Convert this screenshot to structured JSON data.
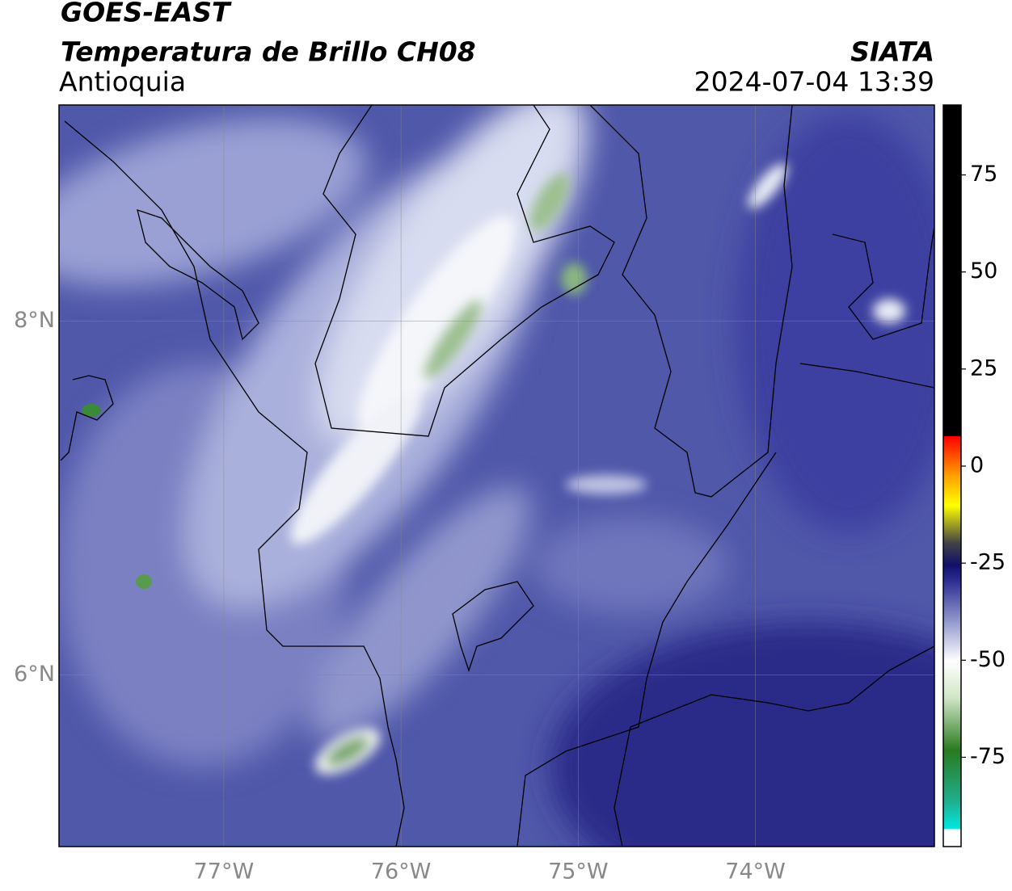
{
  "header": {
    "title": "GOES-EAST",
    "subtitle": "Temperatura de Brillo CH08",
    "region": "Antioquia",
    "source": "SIATA",
    "datetime": "2024-07-04 13:39"
  },
  "map": {
    "xlim": [
      -77.93,
      -72.99
    ],
    "ylim": [
      5.03,
      9.22
    ],
    "xticks": [
      {
        "value": -77,
        "label": "77°W"
      },
      {
        "value": -76,
        "label": "76°W"
      },
      {
        "value": -75,
        "label": "75°W"
      },
      {
        "value": -74,
        "label": "74°W"
      }
    ],
    "yticks": [
      {
        "value": 8,
        "label": "8°N"
      },
      {
        "value": 6,
        "label": "6°N"
      }
    ]
  },
  "colorbar": {
    "lim": [
      -98,
      93
    ],
    "ticks": [
      75,
      50,
      25,
      0,
      -25,
      -50,
      -75
    ]
  }
}
